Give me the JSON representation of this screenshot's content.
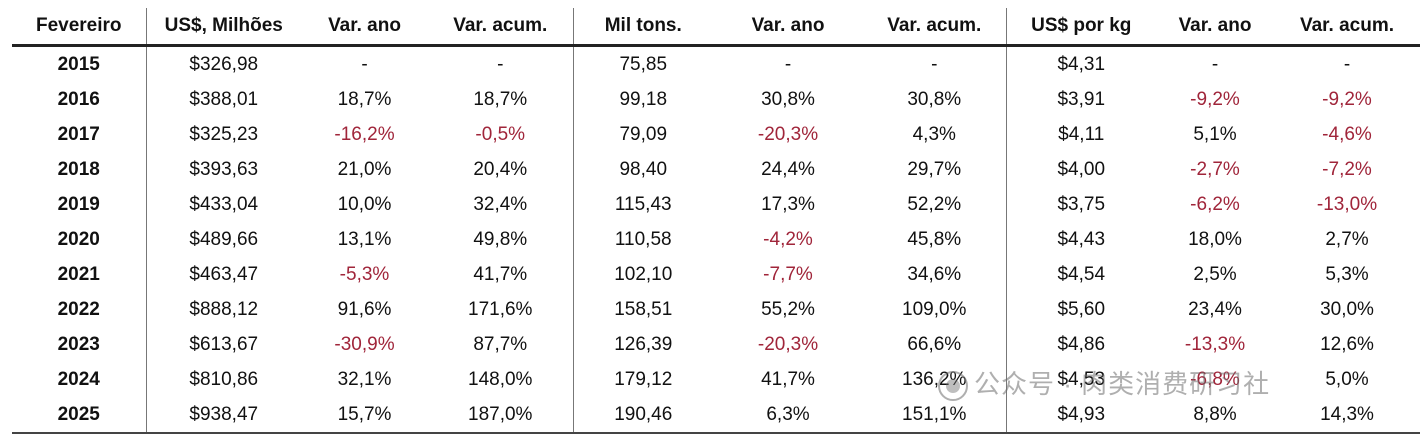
{
  "table": {
    "headers": [
      "Fevereiro",
      "US$, Milhões",
      "Var. ano",
      "Var. acum.",
      "Mil tons.",
      "Var. ano",
      "Var. acum.",
      "US$ por kg",
      "Var. ano",
      "Var. acum."
    ],
    "rows": [
      [
        "2015",
        "$326,98",
        "-",
        "-",
        "75,85",
        "-",
        "-",
        "$4,31",
        "-",
        "-"
      ],
      [
        "2016",
        "$388,01",
        "18,7%",
        "18,7%",
        "99,18",
        "30,8%",
        "30,8%",
        "$3,91",
        "-9,2%",
        "-9,2%"
      ],
      [
        "2017",
        "$325,23",
        "-16,2%",
        "-0,5%",
        "79,09",
        "-20,3%",
        "4,3%",
        "$4,11",
        "5,1%",
        "-4,6%"
      ],
      [
        "2018",
        "$393,63",
        "21,0%",
        "20,4%",
        "98,40",
        "24,4%",
        "29,7%",
        "$4,00",
        "-2,7%",
        "-7,2%"
      ],
      [
        "2019",
        "$433,04",
        "10,0%",
        "32,4%",
        "115,43",
        "17,3%",
        "52,2%",
        "$3,75",
        "-6,2%",
        "-13,0%"
      ],
      [
        "2020",
        "$489,66",
        "13,1%",
        "49,8%",
        "110,58",
        "-4,2%",
        "45,8%",
        "$4,43",
        "18,0%",
        "2,7%"
      ],
      [
        "2021",
        "$463,47",
        "-5,3%",
        "41,7%",
        "102,10",
        "-7,7%",
        "34,6%",
        "$4,54",
        "2,5%",
        "5,3%"
      ],
      [
        "2022",
        "$888,12",
        "91,6%",
        "171,6%",
        "158,51",
        "55,2%",
        "109,0%",
        "$5,60",
        "23,4%",
        "30,0%"
      ],
      [
        "2023",
        "$613,67",
        "-30,9%",
        "87,7%",
        "126,39",
        "-20,3%",
        "66,6%",
        "$4,86",
        "-13,3%",
        "12,6%"
      ],
      [
        "2024",
        "$810,86",
        "32,1%",
        "148,0%",
        "179,12",
        "41,7%",
        "136,2%",
        "$4,53",
        "-6,8%",
        "5,0%"
      ],
      [
        "2025",
        "$938,47",
        "15,7%",
        "187,0%",
        "190,46",
        "6,3%",
        "151,1%",
        "$4,93",
        "8,8%",
        "14,3%"
      ]
    ]
  },
  "colors": {
    "negative": "#a0253a",
    "text": "#111111"
  },
  "watermark": {
    "text": "公众号 · 肉类消费研习社",
    "icon": "wechat-icon"
  }
}
